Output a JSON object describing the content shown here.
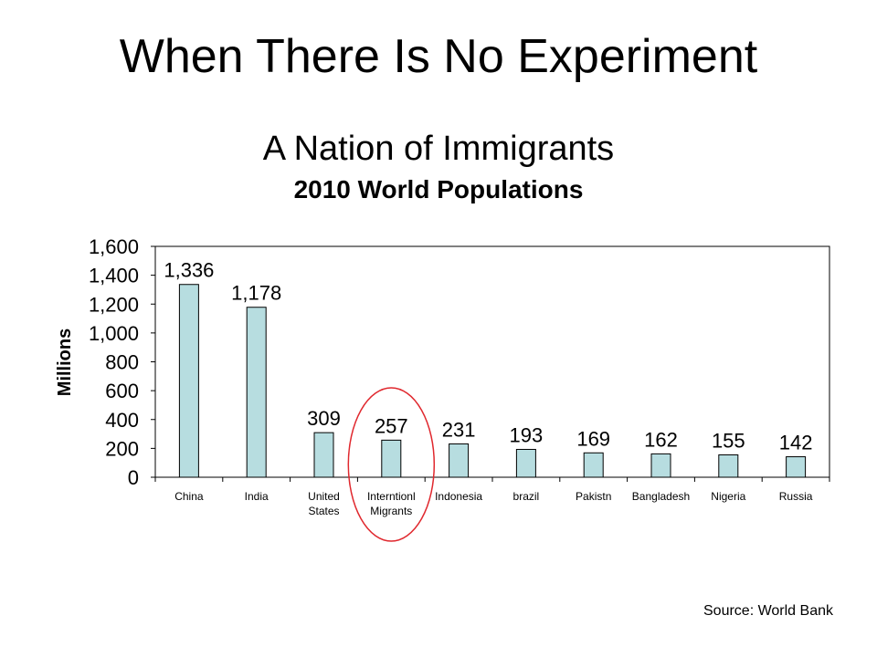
{
  "slide": {
    "title": "When There Is No Experiment",
    "subtitle": "A Nation of Immigrants",
    "source": "Source: World Bank"
  },
  "chart_data": {
    "type": "bar",
    "title": "2010 World Populations",
    "xlabel": "",
    "ylabel": "Millions",
    "ylim": [
      0,
      1600
    ],
    "yticks": [
      0,
      200,
      400,
      600,
      800,
      1000,
      1200,
      1400,
      1600
    ],
    "ytick_labels": [
      "0",
      "200",
      "400",
      "600",
      "800",
      "1,000",
      "1,200",
      "1,400",
      "1,600"
    ],
    "categories": [
      [
        "China"
      ],
      [
        "India"
      ],
      [
        "United",
        "States"
      ],
      [
        "Interntionl",
        "Migrants"
      ],
      [
        "Indonesia"
      ],
      [
        "brazil"
      ],
      [
        "Pakistn"
      ],
      [
        "Bangladesh"
      ],
      [
        "Nigeria"
      ],
      [
        "Russia"
      ]
    ],
    "values": [
      1336,
      1178,
      309,
      257,
      231,
      193,
      169,
      162,
      155,
      142
    ],
    "data_labels": [
      "1,336",
      "1,178",
      "309",
      "257",
      "231",
      "193",
      "169",
      "162",
      "155",
      "142"
    ],
    "grid": false,
    "bar_color": "#b7dde0",
    "highlight": {
      "category_index": 3,
      "shape": "ellipse",
      "color": "#e0282e"
    }
  }
}
